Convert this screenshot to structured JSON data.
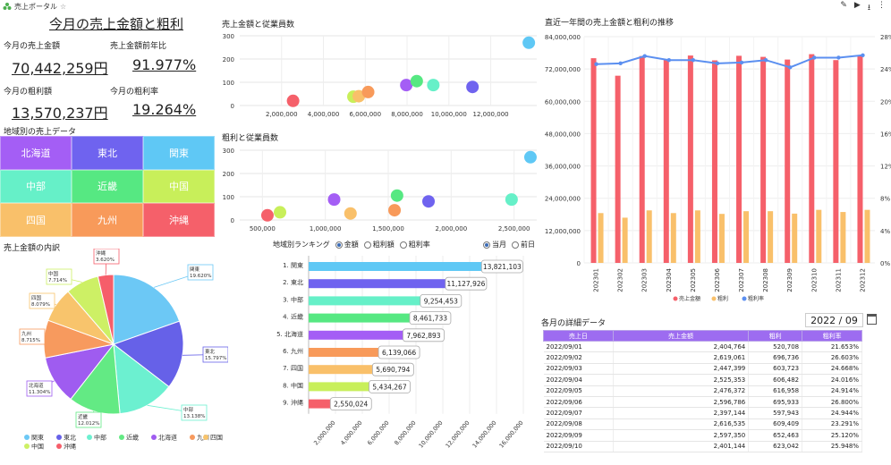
{
  "app": {
    "title": "売上ポータル",
    "star": "☆"
  },
  "toolbar": [
    "edit-icon",
    "play-icon",
    "download-icon",
    "more-icon"
  ],
  "kpi": {
    "title": "今月の売上金額と粗利",
    "sales_label": "今月の売上金額",
    "sales_value": "70,442,259円",
    "sales_yoy_label": "売上金額前年比",
    "sales_yoy_value": "91.977%",
    "profit_label": "今月の粗利額",
    "profit_value": "13,570,237円",
    "margin_label": "今月の粗利率",
    "margin_value": "19.264%"
  },
  "regions": {
    "title": "地域別の売上データ",
    "cells": [
      {
        "name": "北海道",
        "color": "#a45ef5"
      },
      {
        "name": "東北",
        "color": "#6f63ef"
      },
      {
        "name": "関東",
        "color": "#5fc8f5"
      },
      {
        "name": "中部",
        "color": "#66f0c8"
      },
      {
        "name": "近畿",
        "color": "#56e882"
      },
      {
        "name": "中国",
        "color": "#c8ef5a"
      },
      {
        "name": "四国",
        "color": "#f9c06a"
      },
      {
        "name": "九州",
        "color": "#f89a5a"
      },
      {
        "name": "沖縄",
        "color": "#f5606a"
      }
    ]
  },
  "pie": {
    "title": "売上金額の内訳",
    "slices": [
      {
        "name": "関東",
        "pct": 19.62,
        "label": "19.620%",
        "color": "#6cc8f5"
      },
      {
        "name": "東北",
        "pct": 15.797,
        "label": "15.797%",
        "color": "#6661e8"
      },
      {
        "name": "中部",
        "pct": 13.138,
        "label": "13.138%",
        "color": "#6cf0d0"
      },
      {
        "name": "近畿",
        "pct": 12.012,
        "label": "12.012%",
        "color": "#63ea84"
      },
      {
        "name": "北海道",
        "pct": 11.304,
        "label": "11.304%",
        "color": "#9f5cf0"
      },
      {
        "name": "九州",
        "pct": 8.715,
        "label": "8.715%",
        "color": "#f79a5e"
      },
      {
        "name": "四国",
        "pct": 8.079,
        "label": "8.079%",
        "color": "#f8c46c"
      },
      {
        "name": "中国",
        "pct": 7.714,
        "label": "7.714%",
        "color": "#cdf065"
      },
      {
        "name": "沖縄",
        "pct": 3.62,
        "label": "3.620%",
        "color": "#f65e6a"
      }
    ],
    "legend": [
      "関東",
      "東北",
      "中部",
      "近畿",
      "北海道",
      "九州",
      "四国",
      "中国",
      "沖縄"
    ]
  },
  "scatter1": {
    "title": "売上金額と従業員数",
    "yticks": [
      "300",
      "200",
      "100",
      "0"
    ],
    "xticks": [
      "2,000,000",
      "4,000,000",
      "6,000,000",
      "8,000,000",
      "10,000,000",
      "12,000,000"
    ]
  },
  "scatter2": {
    "title": "粗利と従業員数",
    "yticks": [
      "300",
      "200",
      "100",
      "0"
    ],
    "xticks": [
      "500,000",
      "1,000,000",
      "1,500,000",
      "2,000,000",
      "2,500,000"
    ]
  },
  "ranking": {
    "title": "地域別ランキング",
    "options": [
      "金額",
      "粗利額",
      "粗利率"
    ],
    "selected": "金額",
    "period": [
      "当月",
      "前日"
    ],
    "xticks": [
      "2,000,000",
      "4,000,000",
      "6,000,000",
      "8,000,000",
      "10,000,000",
      "12,000,000",
      "14,000,000",
      "16,000,000"
    ]
  },
  "combo": {
    "title": "直近一年間の売上金額と粗利の推移",
    "legend": [
      "売上金額",
      "粗利",
      "粗利率"
    ]
  },
  "detail": {
    "title": "各月の詳細データ",
    "date": "2022 / 09",
    "headers": [
      "売上日",
      "売上金額",
      "粗利",
      "粗利率"
    ],
    "rows": [
      [
        "2022/09/01",
        "2,404,764",
        "520,708",
        "21.653%"
      ],
      [
        "2022/09/02",
        "2,619,061",
        "696,736",
        "26.603%"
      ],
      [
        "2022/09/03",
        "2,447,399",
        "603,723",
        "24.668%"
      ],
      [
        "2022/09/04",
        "2,525,353",
        "606,482",
        "24.016%"
      ],
      [
        "2022/09/05",
        "2,476,372",
        "616,958",
        "24.914%"
      ],
      [
        "2022/09/06",
        "2,596,786",
        "695,933",
        "26.800%"
      ],
      [
        "2022/09/07",
        "2,397,144",
        "597,943",
        "24.944%"
      ],
      [
        "2022/09/08",
        "2,616,535",
        "609,409",
        "23.291%"
      ],
      [
        "2022/09/09",
        "2,597,350",
        "652,463",
        "25.120%"
      ],
      [
        "2022/09/10",
        "2,401,144",
        "623,042",
        "25.948%"
      ]
    ]
  },
  "chart_data": [
    {
      "type": "scatter",
      "title": "売上金額と従業員数",
      "ylim": [
        0,
        300
      ],
      "series": [
        {
          "name": "沖縄",
          "x": 2550024,
          "y": 20,
          "color": "#f5606a"
        },
        {
          "name": "中国",
          "x": 5434267,
          "y": 38,
          "color": "#c8ef5a"
        },
        {
          "name": "四国",
          "x": 5690794,
          "y": 40,
          "color": "#f9c06a"
        },
        {
          "name": "九州",
          "x": 6139066,
          "y": 58,
          "color": "#f89a5a"
        },
        {
          "name": "北海道",
          "x": 7962893,
          "y": 88,
          "color": "#a45ef5"
        },
        {
          "name": "近畿",
          "x": 8461733,
          "y": 105,
          "color": "#56e882"
        },
        {
          "name": "中部",
          "x": 9254453,
          "y": 88,
          "color": "#66f0c8"
        },
        {
          "name": "東北",
          "x": 11127926,
          "y": 80,
          "color": "#6f63ef"
        },
        {
          "name": "関東",
          "x": 13821103,
          "y": 270,
          "color": "#5fc8f5"
        }
      ]
    },
    {
      "type": "scatter",
      "title": "粗利と従業員数",
      "ylim": [
        0,
        300
      ],
      "series": [
        {
          "name": "沖縄",
          "x": 540000,
          "y": 20,
          "color": "#f5606a"
        },
        {
          "name": "中国",
          "x": 640000,
          "y": 33,
          "color": "#c8ef5a"
        },
        {
          "name": "北海道",
          "x": 1070000,
          "y": 88,
          "color": "#a45ef5"
        },
        {
          "name": "四国",
          "x": 1200000,
          "y": 28,
          "color": "#f9c06a"
        },
        {
          "name": "九州",
          "x": 1550000,
          "y": 42,
          "color": "#f89a5a"
        },
        {
          "name": "近畿",
          "x": 1570000,
          "y": 105,
          "color": "#56e882"
        },
        {
          "name": "東北",
          "x": 1820000,
          "y": 80,
          "color": "#6f63ef"
        },
        {
          "name": "中部",
          "x": 2480000,
          "y": 88,
          "color": "#66f0c8"
        },
        {
          "name": "関東",
          "x": 2630000,
          "y": 270,
          "color": "#5fc8f5"
        }
      ]
    },
    {
      "type": "bar",
      "title": "地域別ランキング",
      "categories": [
        "1. 関東",
        "2. 東北",
        "3. 中部",
        "4. 近畿",
        "5. 北海道",
        "6. 九州",
        "7. 四国",
        "8. 中国",
        "9. 沖縄"
      ],
      "values": [
        13821103,
        11127926,
        9254453,
        8461733,
        7962893,
        6139066,
        5690794,
        5434267,
        2550024
      ],
      "labels": [
        "13,821,103",
        "11,127,926",
        "9,254,453",
        "8,461,733",
        "7,962,893",
        "6,139,066",
        "5,690,794",
        "5,434,267",
        "2,550,024"
      ],
      "colors": [
        "#5fc8f5",
        "#6f63ef",
        "#66f0c8",
        "#56e882",
        "#a45ef5",
        "#f89a5a",
        "#f9c06a",
        "#c8ef5a",
        "#f5606a"
      ],
      "xlim": [
        0,
        16000000
      ]
    },
    {
      "type": "bar",
      "title": "直近一年間の売上金額と粗利の推移",
      "categories": [
        "202301",
        "202302",
        "202303",
        "202304",
        "202305",
        "202306",
        "202307",
        "202308",
        "202309",
        "202310",
        "202311",
        "202312"
      ],
      "series": [
        {
          "name": "売上金額",
          "values": [
            76000000,
            69500000,
            76800000,
            75700000,
            77000000,
            75200000,
            76900000,
            76500000,
            75500000,
            77500000,
            75300000,
            76700000
          ],
          "color": "#f5606a"
        },
        {
          "name": "粗利",
          "values": [
            18500000,
            16800000,
            19500000,
            18500000,
            19500000,
            18200000,
            19200000,
            19200000,
            18300000,
            19700000,
            18900000,
            19700000
          ],
          "color": "#f9c06a"
        },
        {
          "name": "粗利率",
          "values": [
            24.6,
            24.7,
            25.6,
            25.1,
            25.1,
            24.7,
            24.8,
            25.1,
            24.2,
            25.4,
            25.4,
            25.7
          ],
          "color": "#5b8ff0"
        }
      ],
      "yticks": [
        "84,000,000",
        "72,000,000",
        "60,000,000",
        "48,000,000",
        "36,000,000",
        "24,000,000",
        "12,000,000",
        "0"
      ],
      "y2ticks": [
        "28%",
        "24%",
        "20%",
        "16%",
        "12%",
        "8%",
        "4%",
        "0%"
      ],
      "ylim": [
        0,
        84000000
      ],
      "y2lim": [
        0,
        28
      ]
    }
  ]
}
